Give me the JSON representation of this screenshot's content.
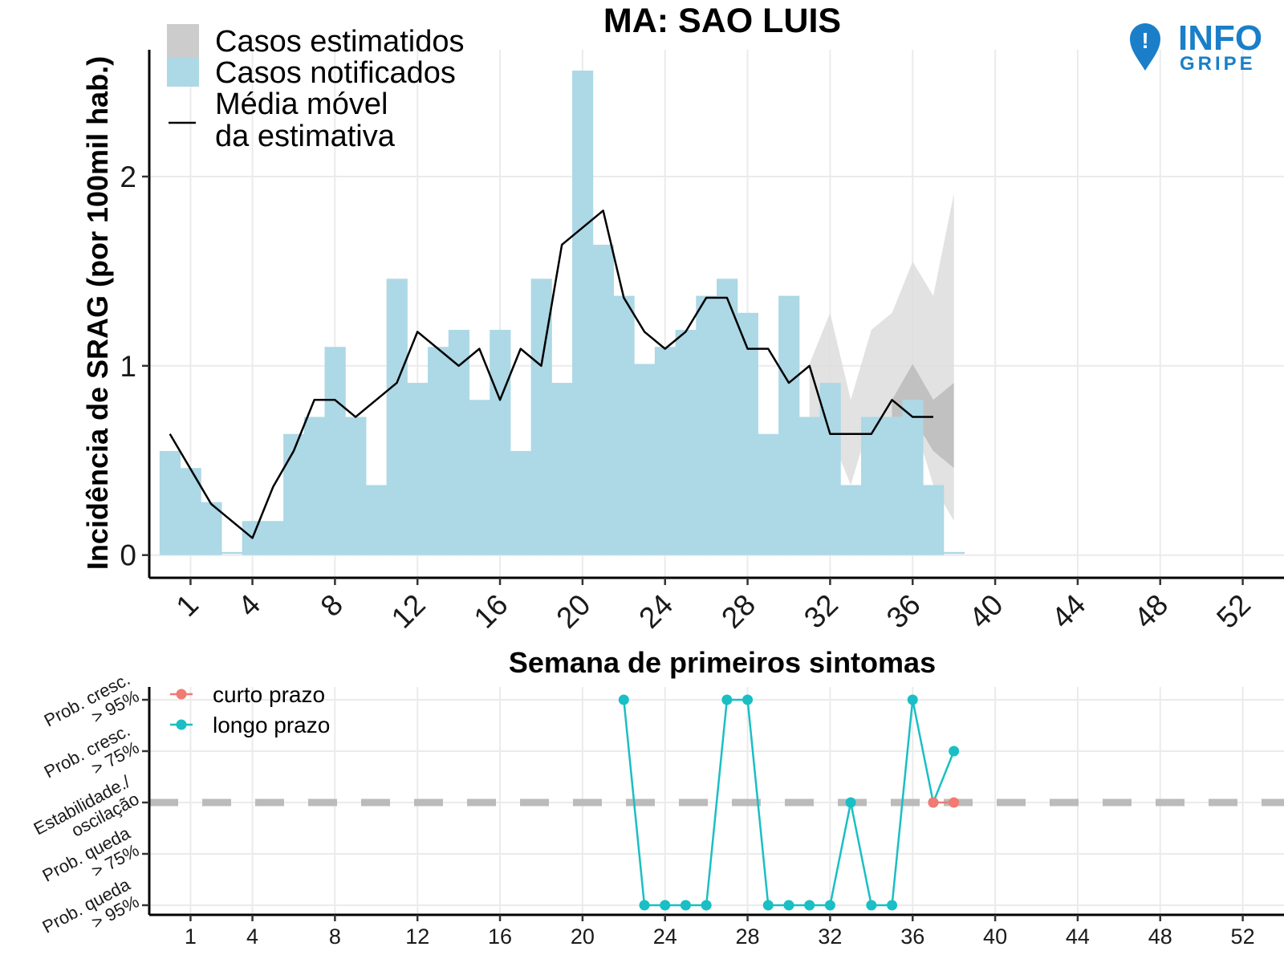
{
  "logo": {
    "line1": "INFO",
    "line2": "GRIPE",
    "color": "#1a7fc8",
    "icon": "info-pin-icon"
  },
  "chart_data": [
    {
      "type": "bar",
      "title": "MA: SAO LUIS",
      "xlabel": "Semana de primeiros sintomas",
      "ylabel": "Incidência de SRAG (por 100mil hab.)",
      "xlim": [
        -1,
        54
      ],
      "ylim": [
        -0.12,
        2.67
      ],
      "x_ticks": [
        1,
        4,
        8,
        12,
        16,
        20,
        24,
        28,
        32,
        36,
        40,
        44,
        48,
        52
      ],
      "y_ticks": [
        0,
        1,
        2
      ],
      "grid": true,
      "legend_position": "top-left",
      "legend": [
        {
          "label": "Casos estimatidos",
          "kind": "fill",
          "color": "#cccccc"
        },
        {
          "label": "Casos notificados",
          "kind": "fill",
          "color": "#add8e6"
        },
        {
          "label": "Média móvel\nda estimativa",
          "kind": "line",
          "color": "#000000"
        }
      ],
      "bar_color": "#add8e6",
      "bars": {
        "weeks": [
          0,
          1,
          2,
          3,
          4,
          5,
          6,
          7,
          8,
          9,
          10,
          11,
          12,
          13,
          14,
          15,
          16,
          17,
          18,
          19,
          20,
          21,
          22,
          23,
          24,
          25,
          26,
          27,
          28,
          29,
          30,
          31,
          32,
          33,
          34,
          35,
          36,
          37,
          38
        ],
        "values": [
          0.55,
          0.46,
          0.28,
          0.01,
          0.18,
          0.18,
          0.64,
          0.73,
          1.1,
          0.73,
          0.37,
          1.46,
          0.91,
          1.1,
          1.19,
          0.82,
          1.19,
          0.55,
          1.46,
          0.91,
          2.56,
          1.64,
          1.37,
          1.01,
          1.1,
          1.19,
          1.37,
          1.46,
          1.28,
          0.64,
          1.37,
          0.73,
          0.91,
          0.37,
          0.73,
          0.73,
          0.82,
          0.37,
          0.01
        ]
      },
      "moving_average": {
        "weeks": [
          0,
          2,
          4,
          5,
          6,
          7,
          8,
          9,
          10,
          11,
          12,
          13,
          14,
          15,
          16,
          17,
          18,
          19,
          20,
          21,
          22,
          23,
          24,
          25,
          26,
          27,
          28,
          29,
          30,
          31,
          32,
          33,
          34,
          35,
          36,
          37
        ],
        "values": [
          0.64,
          0.27,
          0.09,
          0.36,
          0.55,
          0.82,
          0.82,
          0.73,
          0.82,
          0.91,
          1.18,
          1.09,
          1.0,
          1.09,
          0.82,
          1.09,
          1.0,
          1.64,
          1.73,
          1.82,
          1.36,
          1.18,
          1.09,
          1.18,
          1.36,
          1.36,
          1.09,
          1.09,
          0.91,
          1.0,
          0.64,
          0.64,
          0.64,
          0.82,
          0.73,
          0.73
        ]
      },
      "estimate_outer_band": {
        "color": "#dddddd",
        "weeks": [
          31,
          32,
          33,
          34,
          35,
          36,
          37,
          38
        ],
        "lower": [
          0.73,
          0.64,
          0.37,
          0.73,
          0.73,
          0.73,
          0.37,
          0.18
        ],
        "upper": [
          1.01,
          1.28,
          0.82,
          1.19,
          1.28,
          1.55,
          1.37,
          1.91
        ]
      },
      "estimate_inner_band": {
        "color": "#bbbbbb",
        "weeks": [
          35,
          36,
          37,
          38
        ],
        "lower": [
          0.73,
          0.73,
          0.55,
          0.46
        ],
        "upper": [
          0.82,
          1.01,
          0.82,
          0.91
        ]
      }
    },
    {
      "type": "line",
      "title": "",
      "xlabel": "",
      "ylabel": "",
      "x_ticks": [
        1,
        4,
        8,
        12,
        16,
        20,
        24,
        28,
        32,
        36,
        40,
        44,
        48,
        52
      ],
      "y_categories": [
        "Prob. queda\n> 95%",
        "Prob. queda\n> 75%",
        "Estabilidade./\noscilação",
        "Prob. cresc.\n> 75%",
        "Prob. cresc.\n> 95%"
      ],
      "y_values_meaning": "-2 = Prob. queda > 95%, 2 = Prob. cresc. > 95%",
      "baseline": 0,
      "baseline_color": "#bbbbbb",
      "legend_position": "top-left",
      "series": [
        {
          "name": "curto prazo",
          "color": "#f07b72",
          "x": [
            37,
            38
          ],
          "y": [
            0,
            0
          ]
        },
        {
          "name": "longo prazo",
          "color": "#19bfc4",
          "x": [
            22,
            23,
            24,
            25,
            26,
            27,
            28,
            29,
            30,
            31,
            32,
            33,
            34,
            35,
            36,
            37,
            38
          ],
          "y": [
            2,
            -2,
            -2,
            -2,
            -2,
            2,
            2,
            -2,
            -2,
            -2,
            -2,
            0,
            -2,
            -2,
            2,
            0,
            1
          ]
        }
      ]
    }
  ]
}
